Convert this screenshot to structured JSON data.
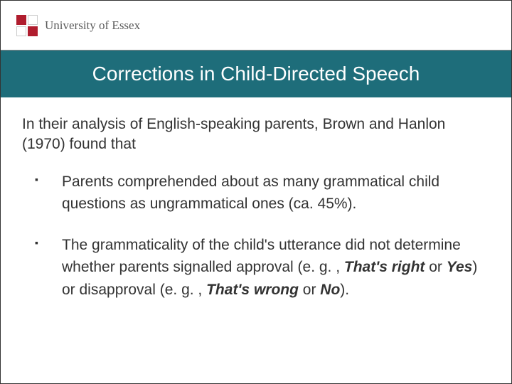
{
  "header": {
    "university_name": "University of Essex",
    "logo_colors": [
      "#b01d2e",
      "#ffffff",
      "#ffffff",
      "#b01d2e"
    ]
  },
  "title": {
    "text": "Corrections in Child-Directed Speech",
    "bg_color": "#1e6d7a",
    "text_color": "#ffffff",
    "fontsize": 28
  },
  "intro": "In their analysis of English-speaking parents, Brown and Hanlon (1970) found that",
  "bullets": [
    {
      "text": "Parents comprehended about as many grammatical child questions as ungrammatical ones (ca. 45%)."
    },
    {
      "prefix": "The grammaticality of the child's utterance did not determine whether parents signalled approval (e. g. , ",
      "em1": "That's right",
      "mid1": " or ",
      "em2": "Yes",
      "mid2": ") or disapproval (e. g. , ",
      "em3": "That's wrong",
      "mid3": " or ",
      "em4": "No",
      "suffix": ")."
    }
  ],
  "body_fontsize": 21,
  "body_color": "#333333"
}
